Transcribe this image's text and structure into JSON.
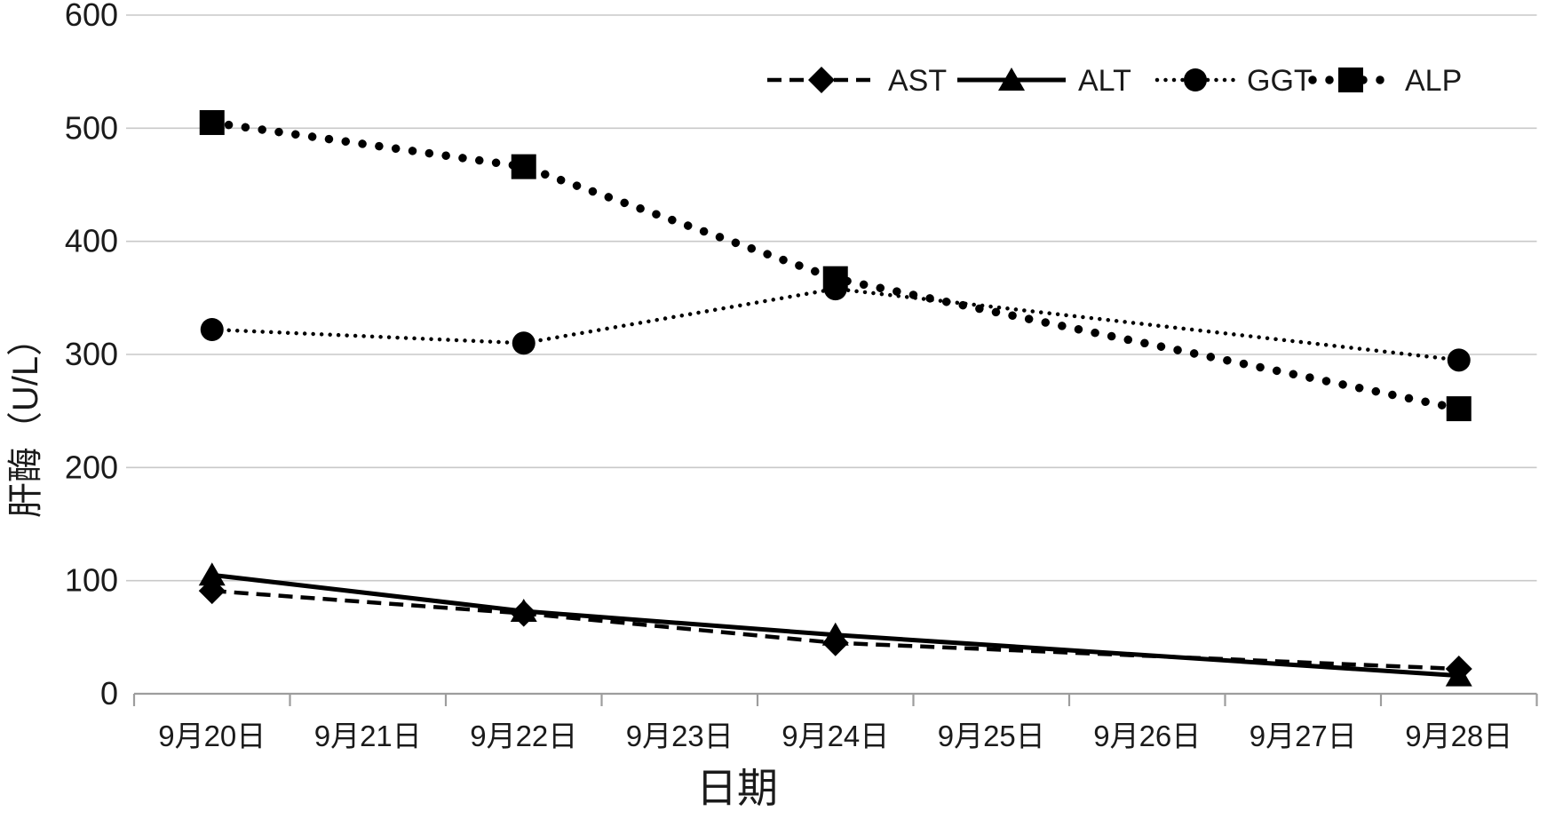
{
  "chart_data": {
    "type": "line",
    "title": "",
    "xlabel": "日期",
    "ylabel": "肝酶（U/L）",
    "categories": [
      "9月20日",
      "9月21日",
      "9月22日",
      "9月23日",
      "9月24日",
      "9月25日",
      "9月26日",
      "9月27日",
      "9月28日"
    ],
    "y_ticks": [
      0,
      100,
      200,
      300,
      400,
      500,
      600
    ],
    "ylim": [
      0,
      600
    ],
    "grid": true,
    "legend_position": "top-right",
    "series": [
      {
        "name": "AST",
        "marker": "diamond",
        "line_style": "dashed",
        "color": "#000000",
        "x": [
          "9月20日",
          "9月22日",
          "9月24日",
          "9月28日"
        ],
        "x_indices": [
          0,
          2,
          4,
          8
        ],
        "values": [
          91,
          71,
          45,
          22
        ]
      },
      {
        "name": "ALT",
        "marker": "triangle",
        "line_style": "solid",
        "color": "#000000",
        "x": [
          "9月20日",
          "9月22日",
          "9月24日",
          "9月28日"
        ],
        "x_indices": [
          0,
          2,
          4,
          8
        ],
        "values": [
          105,
          73,
          52,
          16
        ]
      },
      {
        "name": "GGT",
        "marker": "circle",
        "line_style": "dotted",
        "color": "#000000",
        "x": [
          "9月20日",
          "9月22日",
          "9月24日",
          "9月28日"
        ],
        "x_indices": [
          0,
          2,
          4,
          8
        ],
        "values": [
          322,
          310,
          358,
          295
        ]
      },
      {
        "name": "ALP",
        "marker": "square",
        "line_style": "round-dot",
        "color": "#000000",
        "x": [
          "9月20日",
          "9月22日",
          "9月24日",
          "9月28日"
        ],
        "x_indices": [
          0,
          2,
          4,
          8
        ],
        "values": [
          505,
          466,
          367,
          252
        ]
      }
    ],
    "colors": {
      "series": "#000000",
      "grid": "#c9c9c9",
      "axis": "#9d9d9d",
      "text": "#1a1a1a"
    }
  }
}
